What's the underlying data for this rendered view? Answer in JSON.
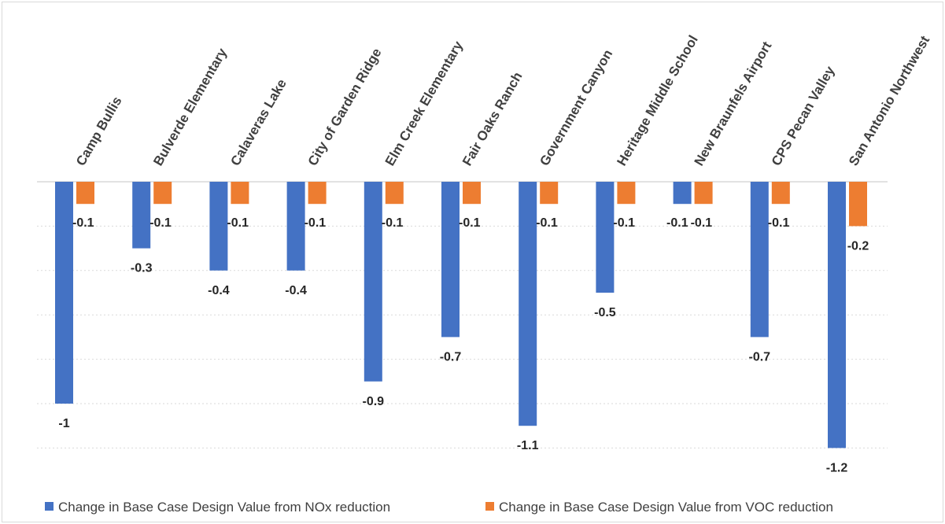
{
  "chart_data": {
    "type": "bar",
    "title": "",
    "xlabel": "",
    "ylabel": "",
    "ylim": [
      -1.3,
      0
    ],
    "grid": true,
    "legend_position": "bottom",
    "categories": [
      "Camp Bullis",
      "Bulverde Elementary",
      "Calaveras Lake",
      "City of Garden Ridge",
      "Elm Creek Elementary",
      "Fair Oaks Ranch",
      "Government Canyon",
      "Heritage Middle School",
      "New Braunfels Airport",
      "CPS Pecan Valley",
      "San Antonio Northwest"
    ],
    "series": [
      {
        "name": "Change in Base Case Design Value from NOx reduction",
        "color": "#4472c4",
        "values": [
          -1,
          -0.3,
          -0.4,
          -0.4,
          -0.9,
          -0.7,
          -1.1,
          -0.5,
          -0.1,
          -0.7,
          -1.2
        ],
        "labels": [
          "-1",
          "-0.3",
          "-0.4",
          "-0.4",
          "-0.9",
          "-0.7",
          "-1.1",
          "-0.5",
          "-0.1",
          "-0.7",
          "-1.2"
        ]
      },
      {
        "name": "Change in Base Case Design Value from VOC reduction",
        "color": "#ed7d31",
        "values": [
          -0.1,
          -0.1,
          -0.1,
          -0.1,
          -0.1,
          -0.1,
          -0.1,
          -0.1,
          -0.1,
          -0.1,
          -0.2
        ],
        "labels": [
          "-0.1",
          "-0.1",
          "-0.1",
          "-0.1",
          "-0.1",
          "-0.1",
          "-0.1",
          "-0.1",
          "-0.1",
          "-0.1",
          "-0.2"
        ]
      }
    ]
  }
}
